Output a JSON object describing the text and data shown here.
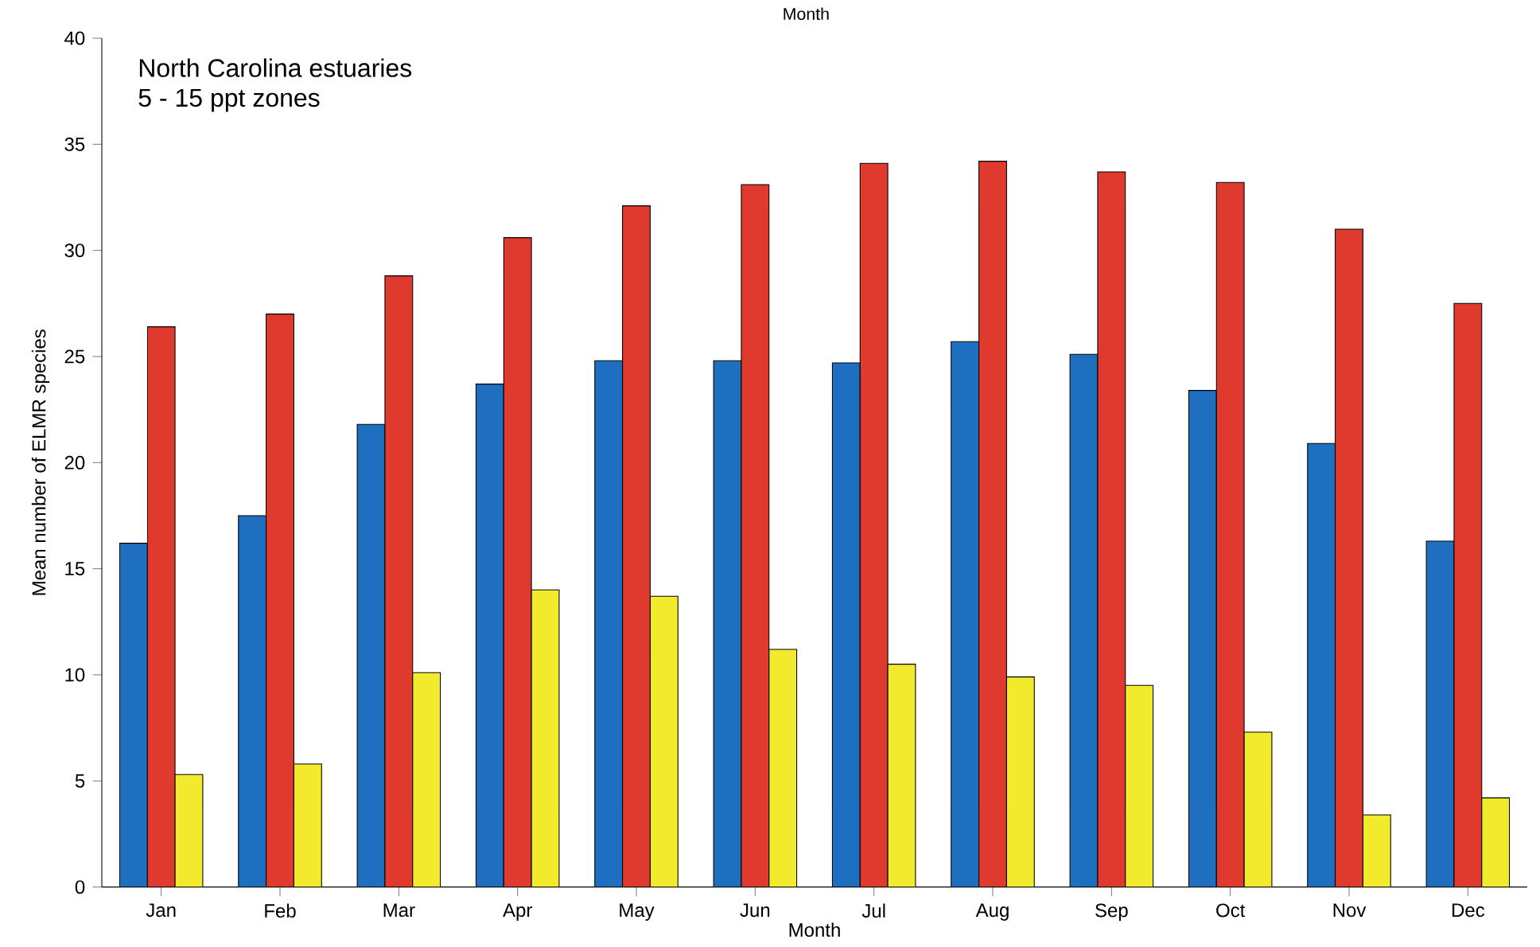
{
  "chart_data": {
    "type": "bar",
    "title": "North Carolina estuaries",
    "subtitle": "5 - 15 ppt zones",
    "xlabel": "Month",
    "ylabel": "Mean number of ELMR species",
    "annotations": [
      "Month"
    ],
    "categories": [
      "Jan",
      "Feb",
      "Mar",
      "Apr",
      "May",
      "Jun",
      "Jul",
      "Aug",
      "Sep",
      "Oct",
      "Nov",
      "Dec"
    ],
    "ylim": [
      0,
      40
    ],
    "yticks": [
      0,
      5,
      10,
      15,
      20,
      25,
      30,
      35,
      40
    ],
    "series": [
      {
        "color": "#1f6fc0",
        "values": [
          16.2,
          17.5,
          21.8,
          23.7,
          24.8,
          24.8,
          24.7,
          25.7,
          25.1,
          23.4,
          20.9,
          16.3
        ]
      },
      {
        "color": "#e03a2e",
        "values": [
          26.4,
          27.0,
          28.8,
          30.6,
          32.1,
          33.1,
          34.1,
          34.2,
          33.7,
          33.2,
          31.0,
          27.5
        ]
      },
      {
        "color": "#f2ea2c",
        "values": [
          5.3,
          5.8,
          10.1,
          14.0,
          13.7,
          11.2,
          10.5,
          9.9,
          9.5,
          7.3,
          3.4,
          4.2
        ]
      }
    ]
  }
}
